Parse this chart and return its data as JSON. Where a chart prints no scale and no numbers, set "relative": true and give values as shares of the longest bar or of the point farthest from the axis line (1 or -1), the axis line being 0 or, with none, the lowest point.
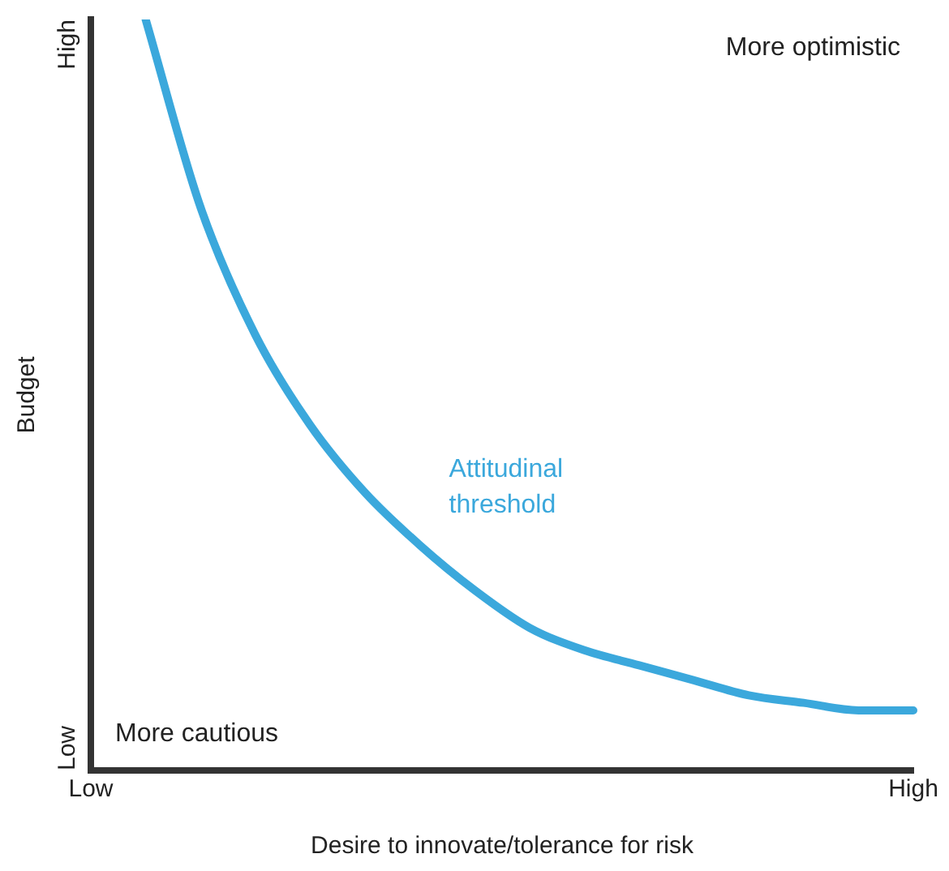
{
  "chart_data": {
    "type": "line",
    "relative": true,
    "xlabel": "Desire to innovate/tolerance for risk",
    "ylabel": "Budget",
    "categories": [
      "Low",
      null,
      null,
      null,
      null,
      null,
      null,
      null,
      null,
      null,
      null,
      null,
      null,
      null,
      null,
      "High"
    ],
    "series": [
      {
        "name": "Attitudinal threshold",
        "color": "#3ba8dc",
        "values": [
          null,
          1.0,
          0.75,
          0.58,
          0.46,
          0.37,
          0.3,
          0.24,
          0.19,
          0.16,
          0.14,
          0.12,
          0.1,
          0.09,
          0.08,
          0.08
        ]
      }
    ],
    "annotations": [
      "More optimistic",
      "More cautious",
      "High",
      "Low"
    ],
    "grid": false,
    "legend": false,
    "marker": "none",
    "line_style": "solid"
  }
}
